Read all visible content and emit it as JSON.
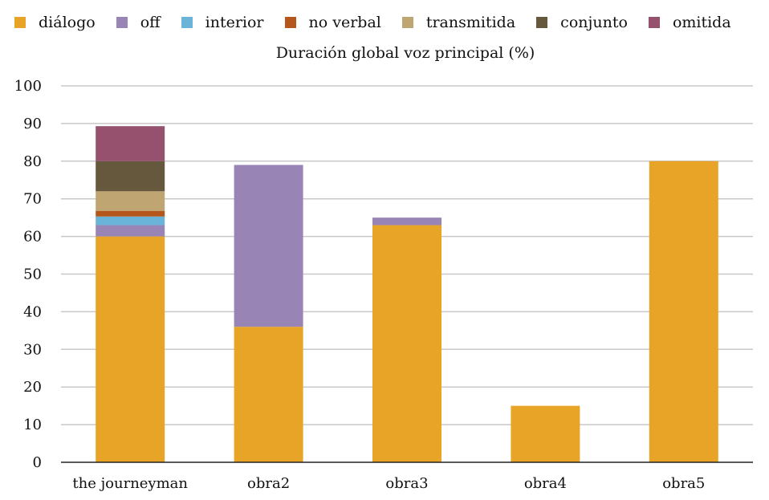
{
  "chart_data": {
    "type": "bar",
    "stacked": true,
    "title": "Duración global voz principal (%)",
    "categories": [
      "the journeyman",
      "obra2",
      "obra3",
      "obra4",
      "obra5"
    ],
    "series": [
      {
        "name": "diálogo",
        "color": "#E8A427",
        "values": [
          60,
          36,
          63,
          15,
          80
        ]
      },
      {
        "name": "off",
        "color": "#9985B5",
        "values": [
          3,
          43,
          2,
          0,
          0
        ]
      },
      {
        "name": "interior",
        "color": "#6AB3D9",
        "values": [
          2.3,
          0,
          0,
          0,
          0
        ]
      },
      {
        "name": "no verbal",
        "color": "#B5561A",
        "values": [
          1.5,
          0,
          0,
          0,
          0
        ]
      },
      {
        "name": "transmitida",
        "color": "#BFA572",
        "values": [
          5.2,
          0,
          0,
          0,
          0
        ]
      },
      {
        "name": "conjunto",
        "color": "#66583D",
        "values": [
          8,
          0,
          0,
          0,
          0
        ]
      },
      {
        "name": "omitida",
        "color": "#96516F",
        "values": [
          9.3,
          0,
          0,
          0,
          0
        ]
      }
    ],
    "y_ticks": [
      "0",
      "10",
      "20",
      "30",
      "40",
      "50",
      "60",
      "70",
      "80",
      "90",
      "100"
    ],
    "ylim": [
      0,
      100
    ],
    "xlabel": "",
    "ylabel": "",
    "grid": true,
    "legend_position": "top"
  }
}
